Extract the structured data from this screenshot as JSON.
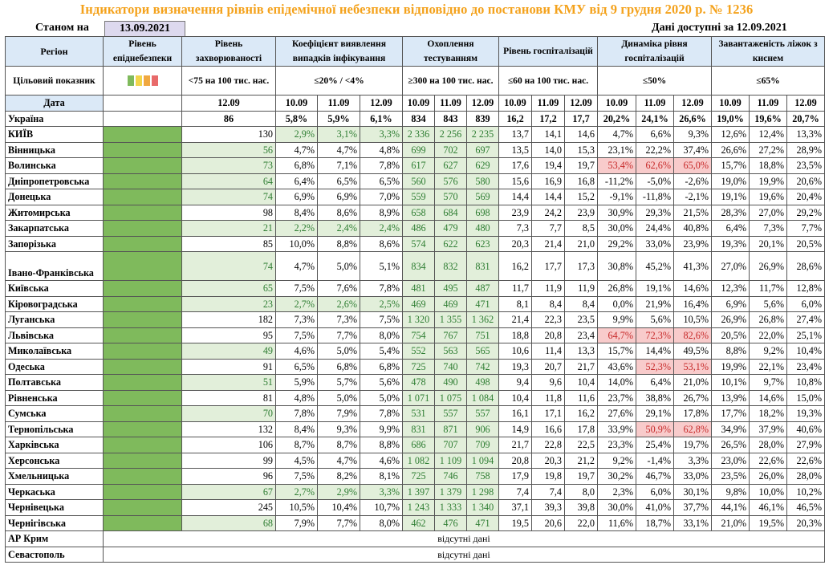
{
  "title": "Індикатори визначення рівнів епідемічної небезпеки відповідно до постанови КМУ від 9 грудня 2020 р. № 1236",
  "status_label": "Станом на",
  "status_date": "13.09.2021",
  "data_available": "Дані доступні за 12.09.2021",
  "headers": {
    "region": "Регіон",
    "level": "Рівень епіднебезпеки",
    "incidence": "Рівень захворюваності",
    "detection": "Коефіцієнт виявлення випадків інфікування",
    "testing": "Охоплення тестуванням",
    "hosp": "Рівень госпіталізацій",
    "dynamics": "Динаміка рівня госпіталізацій",
    "oxygen": "Завантаженість ліжок з киснем"
  },
  "target_row": {
    "label": "Цільовий показник",
    "incidence": "<75 на 100 тис. нас.",
    "detection": "≤20% / <4%",
    "testing": "≥300 на 100 тис. нас.",
    "hosp": "≤60 на 100 тис. нас.",
    "dynamics": "≤50%",
    "oxygen": "≤65%",
    "swatch_colors": [
      "#7fba5c",
      "#f2d54a",
      "#f0a840",
      "#e86a6a"
    ]
  },
  "date_row": {
    "label": "Дата",
    "incidence": "12.09",
    "dates": [
      "10.09",
      "11.09",
      "12.09"
    ]
  },
  "na_text": "відсутні дані",
  "rows": [
    {
      "region": "Україна",
      "inc": "86",
      "det": [
        "5,8%",
        "5,9%",
        "6,1%"
      ],
      "test": [
        "834",
        "843",
        "839"
      ],
      "hosp": [
        "16,2",
        "17,2",
        "17,7"
      ],
      "dyn": [
        "20,2%",
        "24,1%",
        "26,6%"
      ],
      "oxy": [
        "19,0%",
        "19,6%",
        "20,7%"
      ]
    },
    {
      "region": "КИЇВ",
      "inc": "130",
      "det": [
        "2,9%",
        "3,1%",
        "3,3%"
      ],
      "test": [
        "2 336",
        "2 256",
        "2 235"
      ],
      "hosp": [
        "13,7",
        "14,1",
        "14,6"
      ],
      "dyn": [
        "4,7%",
        "6,6%",
        "9,3%"
      ],
      "oxy": [
        "12,6%",
        "12,4%",
        "13,3%"
      ]
    },
    {
      "region": "Вінницька",
      "inc": "56",
      "det": [
        "4,7%",
        "4,7%",
        "4,8%"
      ],
      "test": [
        "699",
        "702",
        "697"
      ],
      "hosp": [
        "13,5",
        "14,0",
        "15,3"
      ],
      "dyn": [
        "23,1%",
        "22,2%",
        "37,4%"
      ],
      "oxy": [
        "26,6%",
        "27,2%",
        "28,9%"
      ]
    },
    {
      "region": "Волинська",
      "inc": "73",
      "det": [
        "6,8%",
        "7,1%",
        "7,8%"
      ],
      "test": [
        "617",
        "627",
        "629"
      ],
      "hosp": [
        "17,6",
        "19,4",
        "19,7"
      ],
      "dyn": [
        "53,4%",
        "62,6%",
        "65,0%"
      ],
      "oxy": [
        "15,7%",
        "18,8%",
        "23,5%"
      ]
    },
    {
      "region": "Дніпропетровська",
      "inc": "64",
      "det": [
        "6,4%",
        "6,5%",
        "6,5%"
      ],
      "test": [
        "560",
        "576",
        "580"
      ],
      "hosp": [
        "15,6",
        "16,9",
        "16,8"
      ],
      "dyn": [
        "-11,2%",
        "-5,0%",
        "-2,6%"
      ],
      "oxy": [
        "19,0%",
        "19,9%",
        "20,6%"
      ]
    },
    {
      "region": "Донецька",
      "inc": "74",
      "det": [
        "6,9%",
        "6,9%",
        "7,0%"
      ],
      "test": [
        "559",
        "570",
        "569"
      ],
      "hosp": [
        "14,4",
        "14,4",
        "15,2"
      ],
      "dyn": [
        "-9,1%",
        "-11,8%",
        "-2,1%"
      ],
      "oxy": [
        "19,1%",
        "19,6%",
        "20,4%"
      ]
    },
    {
      "region": "Житомирська",
      "inc": "98",
      "det": [
        "8,4%",
        "8,6%",
        "8,9%"
      ],
      "test": [
        "658",
        "684",
        "698"
      ],
      "hosp": [
        "23,9",
        "24,2",
        "23,9"
      ],
      "dyn": [
        "30,9%",
        "29,3%",
        "21,5%"
      ],
      "oxy": [
        "28,3%",
        "27,0%",
        "29,2%"
      ]
    },
    {
      "region": "Закарпатська",
      "inc": "21",
      "det": [
        "2,2%",
        "2,4%",
        "2,4%"
      ],
      "test": [
        "486",
        "479",
        "480"
      ],
      "hosp": [
        "7,3",
        "7,7",
        "8,5"
      ],
      "dyn": [
        "30,0%",
        "24,4%",
        "40,8%"
      ],
      "oxy": [
        "6,4%",
        "7,3%",
        "7,7%"
      ]
    },
    {
      "region": "Запорізька",
      "inc": "85",
      "det": [
        "10,0%",
        "8,8%",
        "8,6%"
      ],
      "test": [
        "574",
        "622",
        "623"
      ],
      "hosp": [
        "20,3",
        "21,4",
        "21,0"
      ],
      "dyn": [
        "29,2%",
        "33,0%",
        "23,9%"
      ],
      "oxy": [
        "19,3%",
        "20,1%",
        "20,5%"
      ]
    },
    {
      "region": "Івано-Франківська",
      "inc": "74",
      "det": [
        "4,7%",
        "5,0%",
        "5,1%"
      ],
      "test": [
        "834",
        "832",
        "831"
      ],
      "hosp": [
        "16,2",
        "17,7",
        "17,3"
      ],
      "dyn": [
        "30,8%",
        "45,2%",
        "41,3%"
      ],
      "oxy": [
        "27,0%",
        "26,9%",
        "28,6%"
      ]
    },
    {
      "region": "Київська",
      "inc": "65",
      "det": [
        "7,5%",
        "7,6%",
        "7,8%"
      ],
      "test": [
        "481",
        "495",
        "487"
      ],
      "hosp": [
        "11,7",
        "11,9",
        "11,9"
      ],
      "dyn": [
        "26,8%",
        "19,1%",
        "14,6%"
      ],
      "oxy": [
        "12,3%",
        "11,7%",
        "12,8%"
      ]
    },
    {
      "region": "Кіровоградська",
      "inc": "23",
      "det": [
        "2,7%",
        "2,6%",
        "2,5%"
      ],
      "test": [
        "469",
        "469",
        "471"
      ],
      "hosp": [
        "8,1",
        "8,4",
        "8,4"
      ],
      "dyn": [
        "0,0%",
        "21,9%",
        "16,4%"
      ],
      "oxy": [
        "6,9%",
        "5,6%",
        "6,0%"
      ]
    },
    {
      "region": "Луганська",
      "inc": "182",
      "det": [
        "7,3%",
        "7,3%",
        "7,5%"
      ],
      "test": [
        "1 320",
        "1 355",
        "1 362"
      ],
      "hosp": [
        "21,4",
        "22,3",
        "23,5"
      ],
      "dyn": [
        "9,9%",
        "5,6%",
        "10,5%"
      ],
      "oxy": [
        "26,9%",
        "26,8%",
        "27,4%"
      ]
    },
    {
      "region": "Львівська",
      "inc": "95",
      "det": [
        "7,5%",
        "7,7%",
        "8,0%"
      ],
      "test": [
        "754",
        "767",
        "751"
      ],
      "hosp": [
        "18,8",
        "20,8",
        "23,4"
      ],
      "dyn": [
        "64,7%",
        "72,3%",
        "82,6%"
      ],
      "oxy": [
        "20,5%",
        "22,0%",
        "25,1%"
      ]
    },
    {
      "region": "Миколаївська",
      "inc": "49",
      "det": [
        "4,6%",
        "5,0%",
        "5,4%"
      ],
      "test": [
        "552",
        "563",
        "565"
      ],
      "hosp": [
        "10,6",
        "11,4",
        "13,3"
      ],
      "dyn": [
        "15,7%",
        "14,4%",
        "49,5%"
      ],
      "oxy": [
        "8,8%",
        "9,2%",
        "10,4%"
      ]
    },
    {
      "region": "Одеська",
      "inc": "91",
      "det": [
        "6,5%",
        "6,8%",
        "6,8%"
      ],
      "test": [
        "725",
        "740",
        "742"
      ],
      "hosp": [
        "19,3",
        "20,7",
        "21,7"
      ],
      "dyn": [
        "43,6%",
        "52,3%",
        "53,1%"
      ],
      "oxy": [
        "19,9%",
        "22,1%",
        "23,4%"
      ]
    },
    {
      "region": "Полтавська",
      "inc": "51",
      "det": [
        "5,9%",
        "5,7%",
        "5,6%"
      ],
      "test": [
        "478",
        "490",
        "498"
      ],
      "hosp": [
        "9,4",
        "9,6",
        "10,4"
      ],
      "dyn": [
        "14,0%",
        "6,4%",
        "21,0%"
      ],
      "oxy": [
        "10,1%",
        "9,7%",
        "10,8%"
      ]
    },
    {
      "region": "Рівненська",
      "inc": "81",
      "det": [
        "4,8%",
        "5,0%",
        "5,0%"
      ],
      "test": [
        "1 071",
        "1 075",
        "1 084"
      ],
      "hosp": [
        "10,4",
        "11,8",
        "11,6"
      ],
      "dyn": [
        "23,7%",
        "38,8%",
        "26,7%"
      ],
      "oxy": [
        "13,9%",
        "14,6%",
        "15,0%"
      ]
    },
    {
      "region": "Сумська",
      "inc": "70",
      "det": [
        "7,8%",
        "7,9%",
        "7,8%"
      ],
      "test": [
        "531",
        "557",
        "557"
      ],
      "hosp": [
        "16,1",
        "17,1",
        "16,2"
      ],
      "dyn": [
        "27,6%",
        "29,1%",
        "17,8%"
      ],
      "oxy": [
        "17,7%",
        "18,2%",
        "19,3%"
      ]
    },
    {
      "region": "Тернопільська",
      "inc": "132",
      "det": [
        "8,4%",
        "9,3%",
        "9,9%"
      ],
      "test": [
        "831",
        "871",
        "906"
      ],
      "hosp": [
        "14,9",
        "16,6",
        "17,8"
      ],
      "dyn": [
        "33,9%",
        "50,9%",
        "62,8%"
      ],
      "oxy": [
        "34,9%",
        "37,9%",
        "40,6%"
      ]
    },
    {
      "region": "Харківська",
      "inc": "106",
      "det": [
        "8,7%",
        "8,7%",
        "8,8%"
      ],
      "test": [
        "686",
        "707",
        "709"
      ],
      "hosp": [
        "21,7",
        "22,8",
        "22,5"
      ],
      "dyn": [
        "23,3%",
        "25,4%",
        "19,7%"
      ],
      "oxy": [
        "26,5%",
        "28,0%",
        "27,9%"
      ]
    },
    {
      "region": "Херсонська",
      "inc": "99",
      "det": [
        "4,5%",
        "4,7%",
        "4,6%"
      ],
      "test": [
        "1 082",
        "1 109",
        "1 094"
      ],
      "hosp": [
        "20,8",
        "20,3",
        "21,2"
      ],
      "dyn": [
        "9,2%",
        "-1,4%",
        "3,3%"
      ],
      "oxy": [
        "23,0%",
        "22,6%",
        "22,6%"
      ]
    },
    {
      "region": "Хмельницька",
      "inc": "96",
      "det": [
        "7,5%",
        "8,2%",
        "8,1%"
      ],
      "test": [
        "725",
        "746",
        "758"
      ],
      "hosp": [
        "17,9",
        "19,8",
        "19,7"
      ],
      "dyn": [
        "30,2%",
        "46,7%",
        "33,0%"
      ],
      "oxy": [
        "23,5%",
        "26,0%",
        "28,0%"
      ]
    },
    {
      "region": "Черкаська",
      "inc": "67",
      "det": [
        "2,7%",
        "2,9%",
        "3,3%"
      ],
      "test": [
        "1 397",
        "1 379",
        "1 298"
      ],
      "hosp": [
        "7,4",
        "7,4",
        "8,0"
      ],
      "dyn": [
        "2,3%",
        "6,0%",
        "30,1%"
      ],
      "oxy": [
        "9,8%",
        "10,0%",
        "10,2%"
      ]
    },
    {
      "region": "Чернівецька",
      "inc": "245",
      "det": [
        "10,5%",
        "10,4%",
        "10,7%"
      ],
      "test": [
        "1 243",
        "1 333",
        "1 340"
      ],
      "hosp": [
        "37,1",
        "39,3",
        "39,8"
      ],
      "dyn": [
        "30,0%",
        "41,0%",
        "37,7%"
      ],
      "oxy": [
        "44,1%",
        "46,1%",
        "46,5%"
      ]
    },
    {
      "region": "Чернігівська",
      "inc": "68",
      "det": [
        "7,9%",
        "7,7%",
        "8,0%"
      ],
      "test": [
        "462",
        "476",
        "471"
      ],
      "hosp": [
        "19,5",
        "20,6",
        "22,0"
      ],
      "dyn": [
        "11,6%",
        "18,7%",
        "33,1%"
      ],
      "oxy": [
        "21,0%",
        "19,5%",
        "20,3%"
      ]
    }
  ],
  "na_rows": [
    "АР Крим",
    "Севастополь"
  ]
}
